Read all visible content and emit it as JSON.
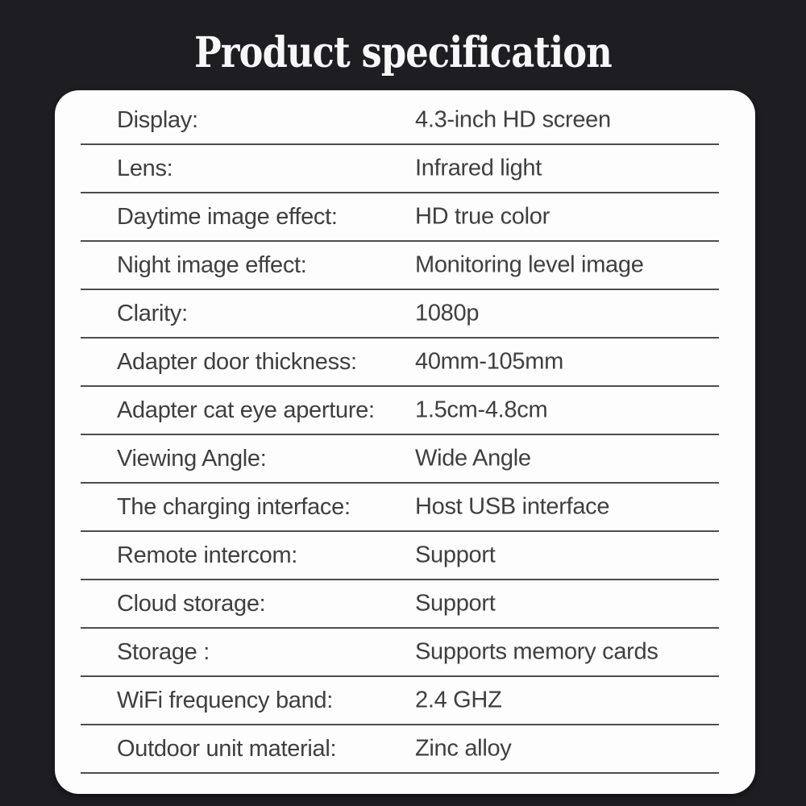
{
  "title": "Product specification",
  "colors": {
    "background": "#1d1d22",
    "card": "#fdfdfd",
    "text": "#3f3f3f",
    "divider": "#4d4d4d",
    "title_text": "#f7f7f7"
  },
  "spec_table": {
    "rows": [
      {
        "label": "Display:",
        "value": "4.3-inch HD screen"
      },
      {
        "label": "Lens:",
        "value": "Infrared light"
      },
      {
        "label": "Daytime image effect:",
        "value": "HD true color"
      },
      {
        "label": "Night image effect:",
        "value": "Monitoring level image"
      },
      {
        "label": "Clarity:",
        "value": "1080p"
      },
      {
        "label": "Adapter door thickness:",
        "value": "40mm-105mm"
      },
      {
        "label": "Adapter cat eye aperture:",
        "value": "1.5cm-4.8cm"
      },
      {
        "label": "Viewing Angle:",
        "value": "Wide Angle"
      },
      {
        "label": "The charging interface:",
        "value": "Host USB interface"
      },
      {
        "label": "Remote intercom:",
        "value": "Support"
      },
      {
        "label": "Cloud storage:",
        "value": "Support"
      },
      {
        "label": "Storage :",
        "value": "Supports memory cards"
      },
      {
        "label": "WiFi frequency band:",
        "value": "2.4 GHZ"
      },
      {
        "label": "Outdoor unit material:",
        "value": "Zinc alloy"
      }
    ]
  }
}
